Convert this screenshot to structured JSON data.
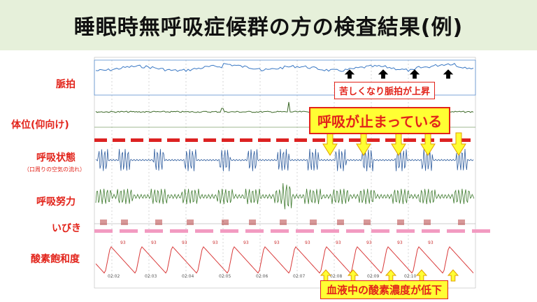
{
  "title": "睡眠時無呼吸症候群の方の検査結果(例)",
  "labels": {
    "pulse": "脈拍",
    "posture": "体位(仰向け)",
    "breathing": "呼吸状態",
    "breathing_sub": "（口周りの空気の流れ）",
    "effort": "呼吸努力",
    "snore": "いびき",
    "spo2": "酸素飽和度"
  },
  "callouts": {
    "pulse_up": "苦しくなり脈拍が上昇",
    "apnea": "呼吸が止まっている",
    "spo2_down": "血液中の酸素濃度が低下"
  },
  "time_ticks": [
    "02:02",
    "02:03",
    "02:04",
    "02:05",
    "02:06",
    "02:07",
    "02:08",
    "02:09",
    "02:10"
  ],
  "spo2_values": [
    "93",
    "93",
    "93",
    "93",
    "93",
    "93",
    "93",
    "93",
    "93",
    "93",
    "93"
  ],
  "colors": {
    "accent": "#e2231a",
    "callout_yellow": "#ffff33",
    "title_bg": "#e6f0da",
    "pulse_line": "#3a78c4",
    "breath_line": "#2f5d9e",
    "effort_line": "#3e7a2e",
    "spo2_line": "#d93a3a",
    "band_pink": "#f29bc1"
  }
}
